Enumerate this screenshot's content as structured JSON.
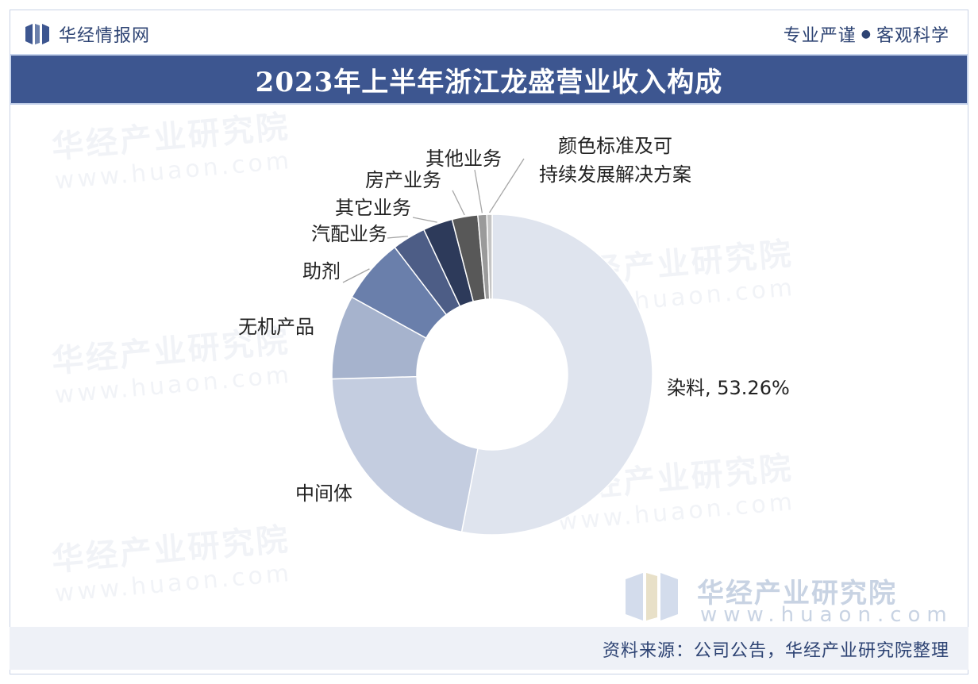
{
  "header": {
    "brand": "华经情报网",
    "slogan_left": "专业严谨",
    "slogan_right": "客观科学"
  },
  "title": "2023年上半年浙江龙盛营业收入构成",
  "watermark": {
    "cn": "华经产业研究院",
    "en": "www.huaon.com"
  },
  "footer": {
    "source": "资料来源：公司公告，华经产业研究院整理"
  },
  "colors": {
    "brand_blue": "#3d5690",
    "slices": [
      "#dfe4ee",
      "#c4cde0",
      "#a6b3cd",
      "#6a7fab",
      "#4d5d86",
      "#2d3a5a",
      "#585858",
      "#9a9a9a",
      "#c4c4c4"
    ]
  },
  "chart_data": {
    "type": "pie",
    "donut": true,
    "categories": [
      "染料",
      "中间体",
      "无机产品",
      "助剂",
      "汽配业务",
      "其它业务",
      "房产业务",
      "其他业务",
      "颜色标准及可持续发展解决方案"
    ],
    "values": [
      53.26,
      21.6,
      8.5,
      6.6,
      3.4,
      3.0,
      2.6,
      0.9,
      0.54
    ],
    "unit": "%",
    "data_labels": [
      "染料, 53.26%",
      "中间体",
      "无机产品",
      "助剂",
      "汽配业务",
      "其它业务",
      "房产业务",
      "其他业务",
      "颜色标准及可持续发展解决方案"
    ],
    "legend": "none"
  }
}
